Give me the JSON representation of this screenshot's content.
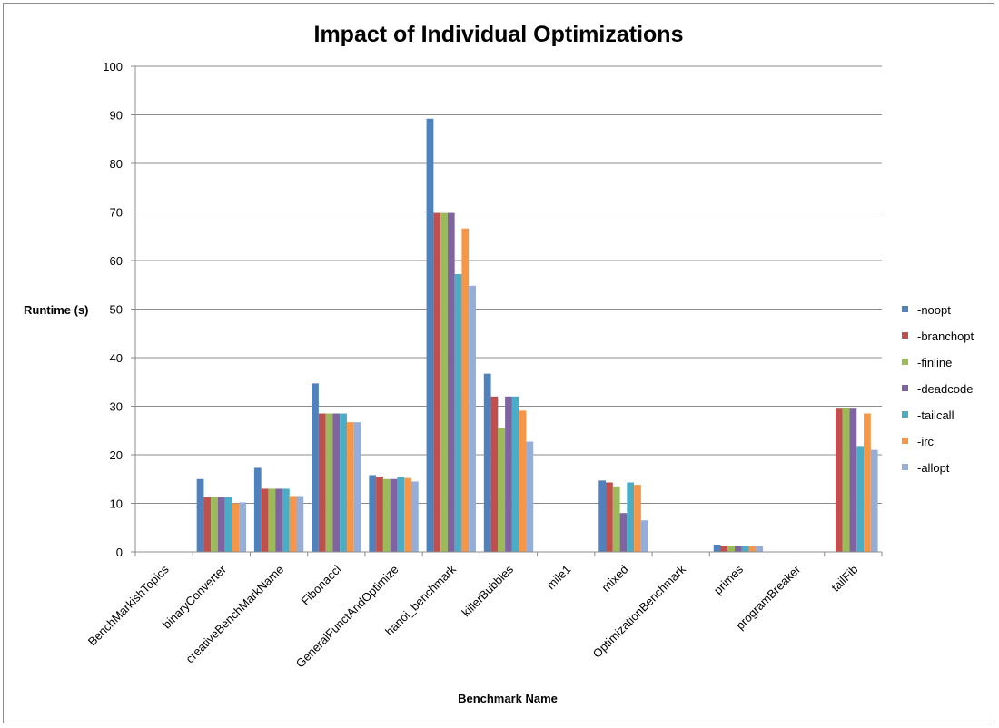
{
  "chart_data": {
    "type": "bar",
    "title": "Impact of Individual Optimizations",
    "xlabel": "Benchmark Name",
    "ylabel": "Runtime (s)",
    "ylim": [
      0,
      100
    ],
    "yticks": [
      0,
      10,
      20,
      30,
      40,
      50,
      60,
      70,
      80,
      90,
      100
    ],
    "grid": true,
    "legend_position": "right",
    "categories": [
      "BenchMarkishTopics",
      "binaryConverter",
      "creativeBenchMarkName",
      "Fibonacci",
      "GeneralFunctAndOptimize",
      "hanoi_benchmark",
      "killerBubbles",
      "mile1",
      "mixed",
      "OptimizationBenchmark",
      "primes",
      "programBreaker",
      "tailFib"
    ],
    "series": [
      {
        "name": "-noopt",
        "color": "#4f81bd",
        "values": [
          0,
          15.0,
          17.3,
          34.7,
          15.8,
          89.2,
          36.7,
          0,
          14.7,
          0,
          1.5,
          0,
          0
        ]
      },
      {
        "name": "-branchopt",
        "color": "#c0504d",
        "values": [
          0,
          11.3,
          13.0,
          28.5,
          15.5,
          69.8,
          32.0,
          0,
          14.3,
          0,
          1.3,
          0,
          29.5
        ]
      },
      {
        "name": "-finline",
        "color": "#9bbb59",
        "values": [
          0,
          11.3,
          13.0,
          28.5,
          15.0,
          69.8,
          25.5,
          0,
          13.5,
          0,
          1.3,
          0,
          29.7
        ]
      },
      {
        "name": "-deadcode",
        "color": "#8064a2",
        "values": [
          0,
          11.3,
          13.0,
          28.5,
          15.0,
          69.8,
          32.0,
          0,
          8.0,
          0,
          1.3,
          0,
          29.5
        ]
      },
      {
        "name": "-tailcall",
        "color": "#4bacc6",
        "values": [
          0,
          11.3,
          13.0,
          28.5,
          15.4,
          57.2,
          32.0,
          0,
          14.3,
          0,
          1.3,
          0,
          21.8
        ]
      },
      {
        "name": "-irc",
        "color": "#f79646",
        "values": [
          0,
          10.0,
          11.5,
          26.7,
          15.2,
          66.6,
          29.1,
          0,
          13.8,
          0,
          1.2,
          0,
          28.5
        ]
      },
      {
        "name": "-allopt",
        "color": "#95aed9",
        "values": [
          0,
          10.2,
          11.5,
          26.7,
          14.5,
          54.8,
          22.7,
          0,
          6.5,
          0,
          1.2,
          0,
          21.0
        ]
      }
    ]
  }
}
